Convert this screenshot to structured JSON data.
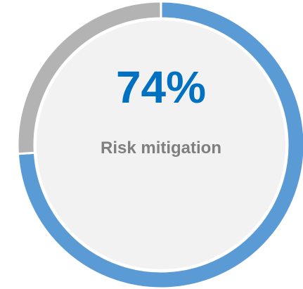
{
  "chart_data": {
    "type": "donut",
    "values": [
      74,
      26
    ],
    "value_labels": [
      "74%",
      null
    ],
    "colors": [
      "#5b9bd5",
      "#b3b3b3"
    ],
    "subtitle": "Risk mitigation"
  }
}
